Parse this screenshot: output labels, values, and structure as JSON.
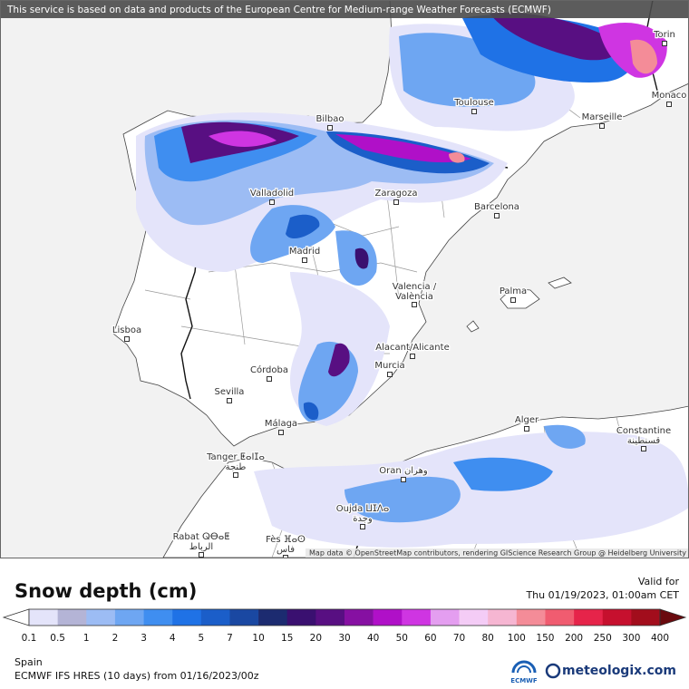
{
  "banner": "This service is based on data and products of the European Centre for Medium-range Weather Forecasts (ECMWF)",
  "attribution": "Map data © OpenStreetMap contributors, rendering GIScience Research Group @ Heidelberg University",
  "cities": [
    {
      "label": "Torin"
    },
    {
      "label": "Toulouse"
    },
    {
      "label": "Marseille"
    },
    {
      "label": "Monaco"
    },
    {
      "label": "Bilbao"
    },
    {
      "label": "Zaragoza"
    },
    {
      "label": "Barcelona"
    },
    {
      "label": "Valladolid"
    },
    {
      "label": "Madrid"
    },
    {
      "label": "Valencia /",
      "label2": "València"
    },
    {
      "label": "Palma"
    },
    {
      "label": "Lisboa"
    },
    {
      "label": "Alacant/Alicante"
    },
    {
      "label": "Murcia"
    },
    {
      "label": "Córdoba"
    },
    {
      "label": "Sevilla"
    },
    {
      "label": "Málaga"
    },
    {
      "label": "Alger"
    },
    {
      "label": "Constantine",
      "label2": "قسنطينة"
    },
    {
      "label": "Tanger ⵟⴰⵏⵊⴰ",
      "label2": "طنجة"
    },
    {
      "label": "Oran وهران"
    },
    {
      "label": "Oujda ⵡⵊⴷⴰ",
      "label2": "وجدة"
    },
    {
      "label": "Rabat ⵕⴱⴰⵟ",
      "label2": "الرباط"
    },
    {
      "label": "Fès ⴼⴰⵙ",
      "label2": "فاس"
    }
  ],
  "footer": {
    "title": "Snow depth (cm)",
    "valid_label": "Valid for",
    "valid_time": "Thu 01/19/2023, 01:00am CET",
    "region": "Spain",
    "model": "ECMWF IFS HRES (10 days) from 01/16/2023/00z",
    "logo_ecmwf": "ECMWF",
    "logo_site": "meteologix.com"
  },
  "legend": {
    "labels": [
      "0.1",
      "0.5",
      "1",
      "2",
      "3",
      "4",
      "5",
      "7",
      "10",
      "15",
      "20",
      "30",
      "40",
      "50",
      "60",
      "70",
      "80",
      "100",
      "150",
      "200",
      "250",
      "300",
      "400"
    ],
    "colors": [
      "#e4e4fa",
      "#b4b4d6",
      "#9cbcf4",
      "#6ea6f2",
      "#3f8ef0",
      "#1f72e6",
      "#1b5ec9",
      "#1a48a2",
      "#1c2b70",
      "#3a1070",
      "#580f82",
      "#8610a2",
      "#b010c8",
      "#cf35e2",
      "#e49ef0",
      "#f4ccf6",
      "#f6b6d2",
      "#f48c98",
      "#f05c70",
      "#e6244a",
      "#c6102e",
      "#a20d1c"
    ],
    "low_color": "#ffffff",
    "high_color": "#6a0a0e"
  }
}
